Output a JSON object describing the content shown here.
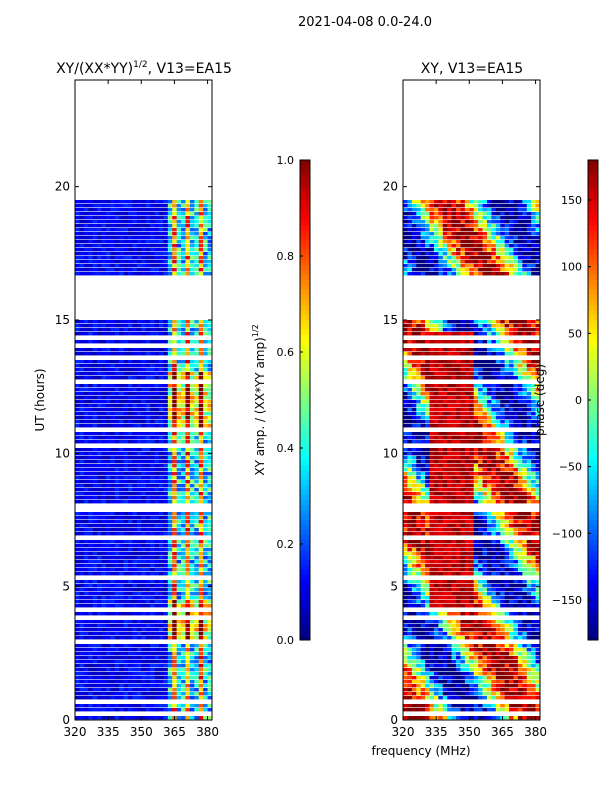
{
  "figure_title": "2021-04-08 0.0-24.0",
  "shared_xlabel": "frequency (MHz)",
  "colors": {
    "jet": [
      "#00007f",
      "#0000ff",
      "#007fff",
      "#00ffff",
      "#7fff7f",
      "#ffff00",
      "#ff7f00",
      "#ff0000",
      "#7f0000"
    ]
  },
  "chart_data": [
    {
      "type": "heatmap",
      "title_main": "XY/(XX*YY)",
      "title_sup": "1/2",
      "title_tail": ", V13=EA15",
      "xlabel": "",
      "ylabel": "UT (hours)",
      "xlim": [
        320,
        382
      ],
      "ylim": [
        0,
        24
      ],
      "xticks": [
        "320",
        "335",
        "350",
        "365",
        "380"
      ],
      "xtick_values": [
        320,
        335,
        350,
        365,
        380
      ],
      "yticks": [
        "0",
        "5",
        "10",
        "15",
        "20"
      ],
      "ytick_values": [
        0,
        5,
        10,
        15,
        20
      ],
      "data_gap_hours": [
        [
          16.6,
          15.1
        ],
        [
          24.0,
          19.5
        ]
      ],
      "hot_channels_mhz": [
        363,
        382
      ],
      "colorbar": {
        "label_main": "XY amp. / (XX*YY amp)",
        "label_sup": "1/2",
        "range": [
          0.0,
          1.0
        ],
        "ticks": [
          "0.0",
          "0.2",
          "0.4",
          "0.6",
          "0.8",
          "1.0"
        ],
        "tick_values": [
          0.0,
          0.2,
          0.4,
          0.6,
          0.8,
          1.0
        ]
      }
    },
    {
      "type": "heatmap",
      "title_main": "XY, V13=EA15",
      "xlabel": "frequency (MHz)",
      "ylabel": "",
      "xlim": [
        320,
        382
      ],
      "ylim": [
        0,
        24
      ],
      "xticks": [
        "320",
        "335",
        "350",
        "365",
        "380"
      ],
      "xtick_values": [
        320,
        335,
        350,
        365,
        380
      ],
      "yticks": [
        "0",
        "5",
        "10",
        "15",
        "20"
      ],
      "ytick_values": [
        0,
        5,
        10,
        15,
        20
      ],
      "data_gap_hours": [
        [
          16.6,
          15.1
        ],
        [
          24.0,
          19.5
        ]
      ],
      "colorbar": {
        "label": "phase (deg)",
        "range": [
          -180,
          180
        ],
        "ticks": [
          "−150",
          "−100",
          "−50",
          "0",
          "50",
          "100",
          "150"
        ],
        "tick_values": [
          -150,
          -100,
          -50,
          0,
          50,
          100,
          150
        ]
      }
    }
  ]
}
